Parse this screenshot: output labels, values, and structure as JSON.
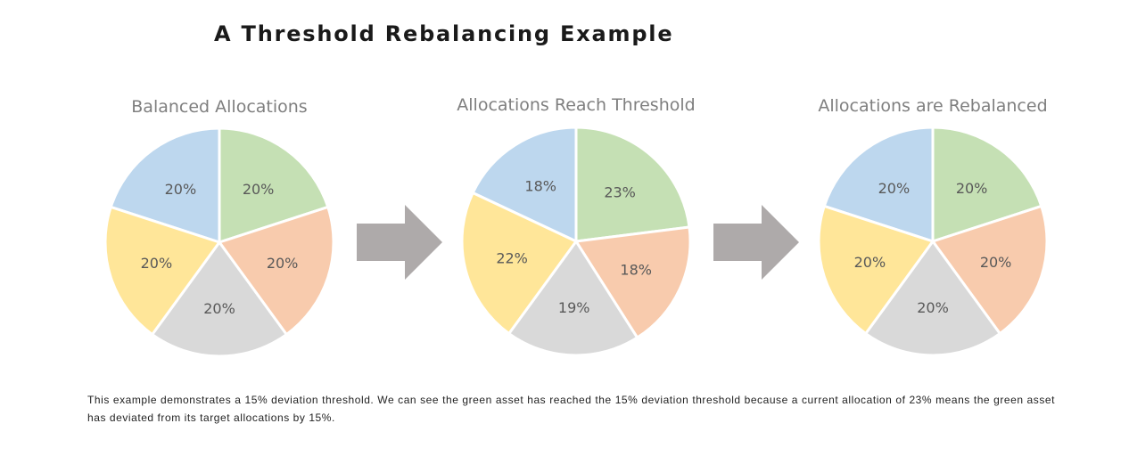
{
  "page": {
    "title": "A Threshold Rebalancing Example",
    "caption": "This example demonstrates a 15% deviation threshold. We can see the green asset has reached the 15% deviation threshold because a current allocation of 23% means the green asset has deviated from its target allocations by 15%."
  },
  "colors": {
    "blue": "#BDD7EE",
    "green": "#C5E0B4",
    "orange": "#F8CBAD",
    "gray": "#D9D9D9",
    "yellow": "#FFE699",
    "label": "#595959",
    "title": "#7F7F7F",
    "arrow": "#AEAAAA"
  },
  "icons": [
    "right-arrow-icon",
    "right-arrow-icon"
  ],
  "chart_data": [
    {
      "type": "pie",
      "title": "Balanced Allocations",
      "categories": [
        "blue",
        "green",
        "orange",
        "gray",
        "yellow"
      ],
      "values": [
        20,
        20,
        20,
        20,
        20
      ],
      "labels": [
        "20%",
        "20%",
        "20%",
        "20%",
        "20%"
      ]
    },
    {
      "type": "pie",
      "title": "Allocations Reach Threshold",
      "categories": [
        "blue",
        "green",
        "orange",
        "gray",
        "yellow"
      ],
      "values": [
        18,
        23,
        18,
        19,
        22
      ],
      "labels": [
        "18%",
        "23%",
        "18%",
        "19%",
        "22%"
      ]
    },
    {
      "type": "pie",
      "title": "Allocations are Rebalanced",
      "categories": [
        "blue",
        "green",
        "orange",
        "gray",
        "yellow"
      ],
      "values": [
        20,
        20,
        20,
        20,
        20
      ],
      "labels": [
        "20%",
        "20%",
        "20%",
        "20%",
        "20%"
      ]
    }
  ]
}
